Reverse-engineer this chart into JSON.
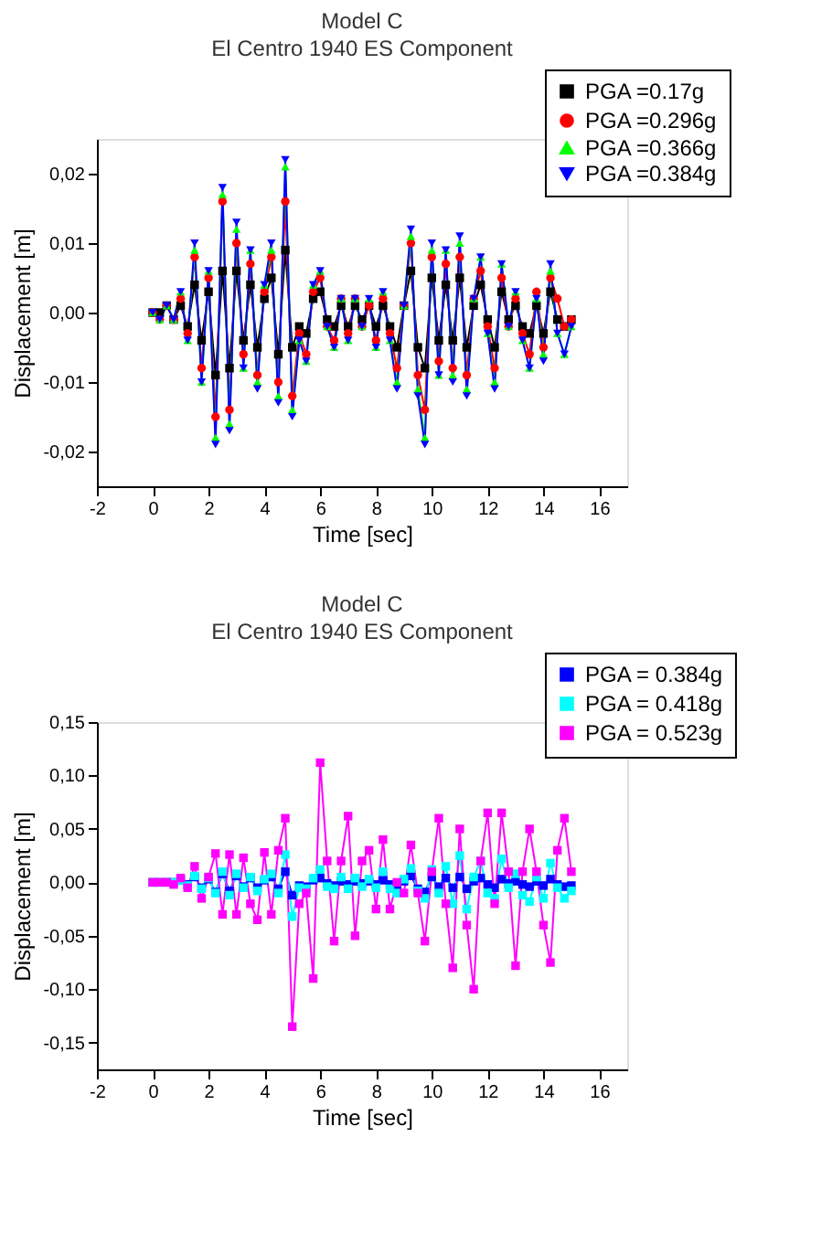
{
  "chart_data": [
    {
      "type": "line",
      "title": "Model C",
      "subtitle": "El Centro 1940 ES Component",
      "xlabel": "Time [sec]",
      "ylabel": "Displacement [m]",
      "x": [
        0,
        0.25,
        0.5,
        0.75,
        1,
        1.25,
        1.5,
        1.75,
        2,
        2.25,
        2.5,
        2.75,
        3,
        3.25,
        3.5,
        3.75,
        4,
        4.25,
        4.5,
        4.75,
        5,
        5.25,
        5.5,
        5.75,
        6,
        6.25,
        6.5,
        6.75,
        7,
        7.25,
        7.5,
        7.75,
        8,
        8.25,
        8.5,
        8.75,
        9,
        9.25,
        9.5,
        9.75,
        10,
        10.25,
        10.5,
        10.75,
        11,
        11.25,
        11.5,
        11.75,
        12,
        12.25,
        12.5,
        12.75,
        13,
        13.25,
        13.5,
        13.75,
        14,
        14.25,
        14.5,
        14.75,
        15
      ],
      "xlim": [
        -2,
        17
      ],
      "xticks": [
        -2,
        0,
        2,
        4,
        6,
        8,
        10,
        12,
        14,
        16
      ],
      "ylim": [
        -0.025,
        0.025
      ],
      "yticks": [
        {
          "value": -0.02,
          "label": "-0,02"
        },
        {
          "value": -0.01,
          "label": "-0,01"
        },
        {
          "value": 0,
          "label": "0,00"
        },
        {
          "value": 0.01,
          "label": "0,01"
        },
        {
          "value": 0.02,
          "label": "0,02"
        }
      ],
      "grid": false,
      "legend": "top right",
      "series": [
        {
          "name": "PGA =0.17g",
          "color": "#000000",
          "marker": "square",
          "values": [
            0,
            0,
            0.001,
            -0.001,
            0.001,
            -0.002,
            0.004,
            -0.004,
            0.003,
            -0.009,
            0.006,
            -0.008,
            0.006,
            -0.004,
            0.004,
            -0.005,
            0.002,
            0.005,
            -0.006,
            0.009,
            -0.005,
            -0.002,
            -0.003,
            0.002,
            0.003,
            -0.001,
            -0.002,
            0.001,
            -0.002,
            0.001,
            -0.001,
            0.001,
            -0.002,
            0.001,
            -0.002,
            -0.005,
            0.001,
            0.006,
            -0.005,
            -0.008,
            0.005,
            -0.004,
            0.004,
            -0.004,
            0.005,
            -0.005,
            0.001,
            0.004,
            -0.001,
            -0.005,
            0.003,
            -0.001,
            0.001,
            -0.002,
            -0.003,
            0.001,
            -0.003,
            0.003,
            -0.001,
            -0.002,
            -0.001
          ]
        },
        {
          "name": "PGA =0.296g",
          "color": "#ff0000",
          "marker": "circle",
          "values": [
            0,
            -0.001,
            0.001,
            -0.001,
            0.002,
            -0.003,
            0.008,
            -0.008,
            0.005,
            -0.015,
            0.016,
            -0.014,
            0.01,
            -0.006,
            0.007,
            -0.009,
            0.003,
            0.008,
            -0.01,
            0.016,
            -0.012,
            -0.003,
            -0.006,
            0.003,
            0.005,
            -0.002,
            -0.004,
            0.002,
            -0.003,
            0.002,
            -0.002,
            0.001,
            -0.004,
            0.002,
            -0.003,
            -0.008,
            0.001,
            0.01,
            -0.009,
            -0.014,
            0.008,
            -0.007,
            0.007,
            -0.008,
            0.008,
            -0.009,
            0.002,
            0.006,
            -0.002,
            -0.008,
            0.005,
            -0.002,
            0.002,
            -0.003,
            -0.006,
            0.003,
            -0.005,
            0.005,
            0.002,
            -0.002,
            -0.001
          ]
        },
        {
          "name": "PGA =0.366g",
          "color": "#00ff00",
          "marker": "triangle",
          "values": [
            0,
            -0.001,
            0.001,
            -0.001,
            0.003,
            -0.004,
            0.009,
            -0.01,
            0.006,
            -0.018,
            0.017,
            -0.016,
            0.012,
            -0.008,
            0.009,
            -0.01,
            0.004,
            0.009,
            -0.012,
            0.021,
            -0.014,
            -0.004,
            -0.007,
            0.004,
            0.006,
            -0.002,
            -0.005,
            0.002,
            -0.004,
            0.002,
            -0.002,
            0.002,
            -0.005,
            0.003,
            -0.004,
            -0.01,
            0.001,
            0.011,
            -0.011,
            -0.018,
            0.009,
            -0.009,
            0.009,
            -0.009,
            0.01,
            -0.011,
            0.002,
            0.008,
            -0.003,
            -0.01,
            0.007,
            -0.002,
            0.003,
            -0.004,
            -0.008,
            0.002,
            -0.006,
            0.006,
            -0.003,
            -0.006,
            -0.002
          ]
        },
        {
          "name": "PGA =0.384g",
          "color": "#0000ff",
          "marker": "triangle-down",
          "values": [
            0,
            -0.001,
            0.001,
            -0.001,
            0.003,
            -0.004,
            0.01,
            -0.01,
            0.006,
            -0.019,
            0.018,
            -0.017,
            0.013,
            -0.008,
            0.009,
            -0.011,
            0.004,
            0.01,
            -0.013,
            0.022,
            -0.015,
            -0.004,
            -0.007,
            0.004,
            0.006,
            -0.002,
            -0.005,
            0.002,
            -0.004,
            0.002,
            -0.002,
            0.002,
            -0.005,
            0.003,
            -0.004,
            -0.011,
            0.001,
            0.012,
            -0.012,
            -0.019,
            0.01,
            -0.009,
            0.009,
            -0.01,
            0.011,
            -0.012,
            0.002,
            0.008,
            -0.003,
            -0.011,
            0.007,
            -0.002,
            0.003,
            -0.004,
            -0.008,
            0.002,
            -0.007,
            0.007,
            -0.003,
            -0.006,
            -0.002
          ]
        }
      ]
    },
    {
      "type": "line",
      "title": "Model C",
      "subtitle": "El Centro 1940 ES Component",
      "xlabel": "Time [sec]",
      "ylabel": "Displacement [m]",
      "x": [
        0,
        0.25,
        0.5,
        0.75,
        1,
        1.25,
        1.5,
        1.75,
        2,
        2.25,
        2.5,
        2.75,
        3,
        3.25,
        3.5,
        3.75,
        4,
        4.25,
        4.5,
        4.75,
        5,
        5.25,
        5.5,
        5.75,
        6,
        6.25,
        6.5,
        6.75,
        7,
        7.25,
        7.5,
        7.75,
        8,
        8.25,
        8.5,
        8.75,
        9,
        9.25,
        9.5,
        9.75,
        10,
        10.25,
        10.5,
        10.75,
        11,
        11.25,
        11.5,
        11.75,
        12,
        12.25,
        12.5,
        12.75,
        13,
        13.25,
        13.5,
        13.75,
        14,
        14.25,
        14.5,
        14.75,
        15
      ],
      "xlim": [
        -2,
        17
      ],
      "xticks": [
        -2,
        0,
        2,
        4,
        6,
        8,
        10,
        12,
        14,
        16
      ],
      "ylim": [
        -0.175,
        0.15
      ],
      "yticks": [
        {
          "value": -0.15,
          "label": "-0,15"
        },
        {
          "value": -0.1,
          "label": "-0,10"
        },
        {
          "value": -0.05,
          "label": "-0,05"
        },
        {
          "value": 0,
          "label": "0,00"
        },
        {
          "value": 0.05,
          "label": "0,05"
        },
        {
          "value": 0.1,
          "label": "0,10"
        },
        {
          "value": 0.15,
          "label": "0,15"
        }
      ],
      "grid": false,
      "legend": "top right",
      "series": [
        {
          "name": "PGA = 0.384g",
          "color": "#0000ff",
          "marker": "square",
          "values": [
            0,
            0,
            0,
            0,
            0.002,
            -0.002,
            0.005,
            -0.005,
            0.003,
            -0.009,
            0.008,
            -0.008,
            0.006,
            -0.004,
            0.004,
            -0.005,
            0.002,
            0.005,
            -0.006,
            0.01,
            -0.012,
            -0.003,
            -0.004,
            0.002,
            0.004,
            -0.001,
            -0.003,
            0.001,
            -0.002,
            0.001,
            -0.001,
            0.001,
            -0.002,
            0.002,
            -0.002,
            -0.005,
            0.001,
            0.006,
            -0.006,
            -0.009,
            0.005,
            -0.004,
            0.004,
            -0.005,
            0.005,
            -0.006,
            0.001,
            0.004,
            -0.002,
            -0.005,
            0.003,
            -0.001,
            0.001,
            -0.002,
            -0.004,
            0.001,
            -0.003,
            0.003,
            -0.002,
            -0.004,
            -0.003
          ]
        },
        {
          "name": "PGA = 0.418g",
          "color": "#00ffff",
          "marker": "square",
          "values": [
            0,
            0,
            0,
            0,
            0.002,
            -0.003,
            0.006,
            -0.006,
            0.004,
            -0.01,
            0.01,
            -0.012,
            0.008,
            -0.005,
            0.005,
            -0.008,
            0.003,
            0.008,
            -0.01,
            0.026,
            -0.032,
            -0.005,
            -0.006,
            0.004,
            0.012,
            -0.004,
            -0.006,
            0.005,
            -0.006,
            0.004,
            -0.004,
            0.003,
            -0.005,
            0.01,
            -0.006,
            -0.01,
            0.003,
            0.013,
            -0.008,
            -0.015,
            0.012,
            -0.01,
            0.015,
            -0.02,
            0.025,
            -0.025,
            0.005,
            0.02,
            -0.01,
            -0.015,
            0.022,
            -0.005,
            0.008,
            -0.012,
            -0.018,
            0.005,
            -0.015,
            0.018,
            -0.005,
            -0.015,
            -0.008
          ]
        },
        {
          "name": "PGA = 0.523g",
          "color": "#ff00ff",
          "marker": "square",
          "values": [
            0,
            0,
            0,
            -0.002,
            0.004,
            -0.005,
            0.015,
            -0.015,
            0.005,
            0.027,
            -0.03,
            0.026,
            -0.03,
            0.023,
            -0.02,
            -0.035,
            0.028,
            -0.03,
            0.03,
            0.06,
            -0.135,
            -0.02,
            -0.01,
            -0.09,
            0.112,
            0.02,
            -0.055,
            0.02,
            0.062,
            -0.05,
            0.02,
            0.03,
            -0.025,
            0.04,
            -0.025,
            0,
            -0.01,
            0.035,
            -0.01,
            -0.055,
            0.01,
            0.06,
            -0.02,
            -0.08,
            0.05,
            -0.04,
            -0.1,
            0.02,
            0.065,
            -0.02,
            0.065,
            0.01,
            -0.078,
            0.01,
            0.05,
            0.01,
            -0.04,
            -0.075,
            0.03,
            0.06,
            0.01
          ]
        }
      ]
    }
  ]
}
